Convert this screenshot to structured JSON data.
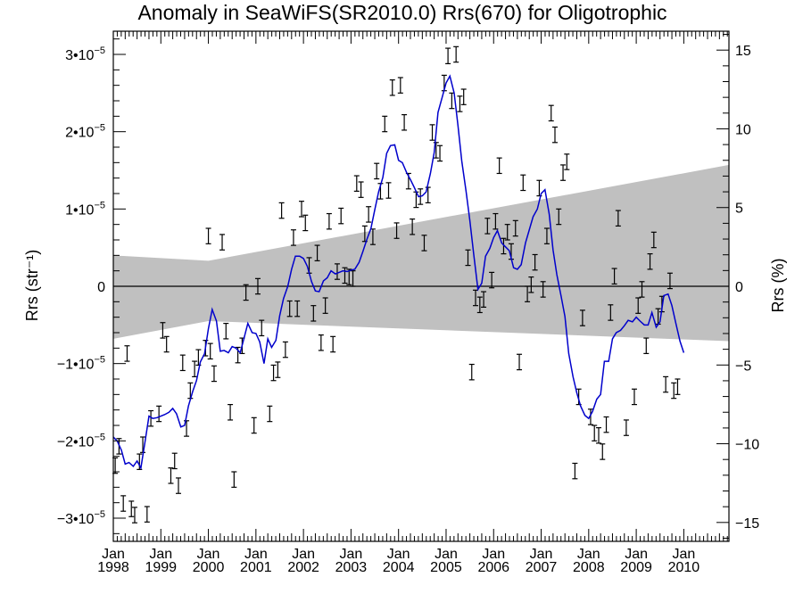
{
  "chart_data": {
    "type": "line",
    "title": "Anomaly in SeaWiFS(SR2010.0) Rrs(670) for Oligotrophic",
    "ylabel_left": "Rrs (str⁻¹)",
    "ylabel_right": "Rrs (%)",
    "xlim": [
      1998.0,
      2010.95
    ],
    "ylim_left": [
      -3.3e-05,
      3.3e-05
    ],
    "ylim_right": [
      -16.2,
      16.2
    ],
    "x_ticks": [
      {
        "month": "Jan",
        "year": "1998",
        "x": 1998
      },
      {
        "month": "Jan",
        "year": "1999",
        "x": 1999
      },
      {
        "month": "Jan",
        "year": "2000",
        "x": 2000
      },
      {
        "month": "Jan",
        "year": "2001",
        "x": 2001
      },
      {
        "month": "Jan",
        "year": "2002",
        "x": 2002
      },
      {
        "month": "Jan",
        "year": "2003",
        "x": 2003
      },
      {
        "month": "Jan",
        "year": "2004",
        "x": 2004
      },
      {
        "month": "Jan",
        "year": "2005",
        "x": 2005
      },
      {
        "month": "Jan",
        "year": "2006",
        "x": 2006
      },
      {
        "month": "Jan",
        "year": "2007",
        "x": 2007
      },
      {
        "month": "Jan",
        "year": "2008",
        "x": 2008
      },
      {
        "month": "Jan",
        "year": "2009",
        "x": 2009
      },
      {
        "month": "Jan",
        "year": "2010",
        "x": 2010
      }
    ],
    "y_ticks_left": [
      {
        "value": 3e-05,
        "mantissa": "3•10",
        "exp": "−5"
      },
      {
        "value": 2e-05,
        "mantissa": "2•10",
        "exp": "−5"
      },
      {
        "value": 1e-05,
        "mantissa": "1•10",
        "exp": "−5"
      },
      {
        "value": 0,
        "mantissa": "0",
        "exp": ""
      },
      {
        "value": -1e-05,
        "mantissa": "−1•10",
        "exp": "−5"
      },
      {
        "value": -2e-05,
        "mantissa": "−2•10",
        "exp": "−5"
      },
      {
        "value": -3e-05,
        "mantissa": "−3•10",
        "exp": "−5"
      }
    ],
    "y_ticks_right": [
      {
        "value": 15,
        "label": "15"
      },
      {
        "value": 10,
        "label": "10"
      },
      {
        "value": 5,
        "label": "5"
      },
      {
        "value": 0,
        "label": "0"
      },
      {
        "value": -5,
        "label": "−5"
      },
      {
        "value": -10,
        "label": "−10"
      },
      {
        "value": -15,
        "label": "−15"
      }
    ],
    "band": {
      "upper": [
        [
          1998.0,
          4e-06
        ],
        [
          2000.0,
          3.3e-06
        ],
        [
          2010.95,
          1.57e-05
        ]
      ],
      "lower": [
        [
          2010.95,
          -7.1e-06
        ],
        [
          2000.0,
          -4.5e-06
        ],
        [
          1998.0,
          -6.8e-06
        ]
      ]
    },
    "zero_line": 0,
    "error_bar_halfwidth": 1e-06,
    "points": [
      [
        1998.04,
        -2.32e-05
      ],
      [
        1998.12,
        -2.07e-05
      ],
      [
        1998.21,
        -2.81e-05
      ],
      [
        1998.29,
        -8.7e-06
      ],
      [
        1998.38,
        -2.88e-05
      ],
      [
        1998.45,
        -2.96e-05
      ],
      [
        1998.55,
        -2.27e-05
      ],
      [
        1998.62,
        -2.05e-05
      ],
      [
        1998.71,
        -2.95e-05
      ],
      [
        1998.79,
        -1.71e-05
      ],
      [
        1998.96,
        -1.65e-05
      ],
      [
        1999.04,
        -5.7e-06
      ],
      [
        1999.12,
        -7.5e-06
      ],
      [
        1999.21,
        -2.45e-05
      ],
      [
        1999.29,
        -2.26e-05
      ],
      [
        1999.37,
        -2.58e-05
      ],
      [
        1999.46,
        -9.9e-06
      ],
      [
        1999.54,
        -1.84e-05
      ],
      [
        1999.62,
        -1.35e-05
      ],
      [
        1999.71,
        -1.07e-05
      ],
      [
        1999.79,
        -9.2e-06
      ],
      [
        1999.94,
        -8e-06
      ],
      [
        2000.0,
        6.5e-06
      ],
      [
        2000.04,
        -8.4e-06
      ],
      [
        2000.12,
        -1.13e-05
      ],
      [
        2000.29,
        5.7e-06
      ],
      [
        2000.37,
        -5.8e-06
      ],
      [
        2000.46,
        -1.63e-05
      ],
      [
        2000.54,
        -2.5e-05
      ],
      [
        2000.62,
        -8.9e-06
      ],
      [
        2000.71,
        -7.7e-06
      ],
      [
        2000.79,
        -8e-07
      ],
      [
        2000.96,
        -1.8e-05
      ],
      [
        2001.04,
        0.0
      ],
      [
        2001.12,
        -5.4e-06
      ],
      [
        2001.29,
        -1.65e-05
      ],
      [
        2001.37,
        -1.12e-05
      ],
      [
        2001.46,
        -1.08e-05
      ],
      [
        2001.54,
        9.8e-06
      ],
      [
        2001.62,
        -8.2e-06
      ],
      [
        2001.71,
        -2.9e-06
      ],
      [
        2001.79,
        6.3e-06
      ],
      [
        2001.87,
        -2.9e-06
      ],
      [
        2001.96,
        1e-05
      ],
      [
        2002.04,
        8.2e-06
      ],
      [
        2002.12,
        2.7e-06
      ],
      [
        2002.21,
        -3.5e-06
      ],
      [
        2002.29,
        4.3e-06
      ],
      [
        2002.37,
        -7.3e-06
      ],
      [
        2002.46,
        -2.5e-06
      ],
      [
        2002.54,
        8.4e-06
      ],
      [
        2002.62,
        -7.5e-06
      ],
      [
        2002.71,
        1.9e-06
      ],
      [
        2002.79,
        9.1e-06
      ],
      [
        2002.87,
        1.4e-06
      ],
      [
        2002.96,
        1.2e-06
      ],
      [
        2003.04,
        1e-06
      ],
      [
        2003.12,
        1.33e-05
      ],
      [
        2003.21,
        1.25e-05
      ],
      [
        2003.29,
        6.8e-06
      ],
      [
        2003.37,
        9.3e-06
      ],
      [
        2003.46,
        6.4e-06
      ],
      [
        2003.54,
        1.49e-05
      ],
      [
        2003.62,
        1.23e-05
      ],
      [
        2003.71,
        2.1e-05
      ],
      [
        2003.79,
        1.24e-05
      ],
      [
        2003.87,
        2.57e-05
      ],
      [
        2003.96,
        7.2e-06
      ],
      [
        2004.04,
        2.6e-05
      ],
      [
        2004.12,
        2.12e-05
      ],
      [
        2004.21,
        1.36e-05
      ],
      [
        2004.29,
        7.7e-06
      ],
      [
        2004.37,
        1.12e-05
      ],
      [
        2004.46,
        1.16e-05
      ],
      [
        2004.54,
        5.6e-06
      ],
      [
        2004.62,
        1.18e-05
      ],
      [
        2004.71,
        1.99e-05
      ],
      [
        2004.79,
        1.76e-05
      ],
      [
        2004.87,
        1.72e-05
      ],
      [
        2004.96,
        2.63e-05
      ],
      [
        2005.04,
        2.98e-05
      ],
      [
        2005.12,
        2.4e-05
      ],
      [
        2005.21,
        3e-05
      ],
      [
        2005.29,
        2.36e-05
      ],
      [
        2005.37,
        2.45e-05
      ],
      [
        2005.46,
        3.7e-06
      ],
      [
        2005.54,
        -1.11e-05
      ],
      [
        2005.62,
        -1.5e-06
      ],
      [
        2005.71,
        -2.4e-06
      ],
      [
        2005.79,
        -1.7e-06
      ],
      [
        2005.87,
        7.8e-06
      ],
      [
        2005.96,
        8e-07
      ],
      [
        2006.04,
        8.4e-06
      ],
      [
        2006.12,
        1.56e-05
      ],
      [
        2006.21,
        5.2e-06
      ],
      [
        2006.29,
        7e-06
      ],
      [
        2006.37,
        4.5e-06
      ],
      [
        2006.46,
        7.5e-06
      ],
      [
        2006.54,
        -9.8e-06
      ],
      [
        2006.62,
        1.34e-05
      ],
      [
        2006.71,
        -1e-06
      ],
      [
        2006.79,
        2e-07
      ],
      [
        2006.87,
        3.1e-06
      ],
      [
        2006.96,
        1.27e-05
      ],
      [
        2007.04,
        -4e-07
      ],
      [
        2007.12,
        6.5e-06
      ],
      [
        2007.21,
        2.24e-05
      ],
      [
        2007.29,
        1.96e-05
      ],
      [
        2007.37,
        9e-06
      ],
      [
        2007.46,
        1.47e-05
      ],
      [
        2007.54,
        1.61e-05
      ],
      [
        2007.71,
        -2.39e-05
      ],
      [
        2007.79,
        -1.43e-05
      ],
      [
        2007.87,
        -4.1e-06
      ],
      [
        2008.04,
        -1.69e-05
      ],
      [
        2008.12,
        -1.9e-05
      ],
      [
        2008.21,
        -1.93e-05
      ],
      [
        2008.29,
        -2.14e-05
      ],
      [
        2008.37,
        -1.79e-05
      ],
      [
        2008.46,
        -3.4e-06
      ],
      [
        2008.54,
        1.3e-06
      ],
      [
        2008.62,
        8.8e-06
      ],
      [
        2008.79,
        -1.83e-05
      ],
      [
        2008.96,
        -1.43e-05
      ],
      [
        2009.04,
        -2.5e-06
      ],
      [
        2009.12,
        -4e-07
      ],
      [
        2009.21,
        -7.7e-06
      ],
      [
        2009.29,
        3.2e-06
      ],
      [
        2009.37,
        6e-06
      ],
      [
        2009.46,
        -3.9e-06
      ],
      [
        2009.54,
        -2.3e-06
      ],
      [
        2009.62,
        -1.27e-05
      ],
      [
        2009.71,
        7e-07
      ],
      [
        2009.79,
        -1.35e-05
      ],
      [
        2009.87,
        -1.3e-05
      ]
    ],
    "fit_line": [
      [
        1998.0,
        -1.95e-05
      ],
      [
        1998.08,
        -2e-05
      ],
      [
        1998.17,
        -2.12e-05
      ],
      [
        1998.25,
        -2.3e-05
      ],
      [
        1998.33,
        -2.28e-05
      ],
      [
        1998.42,
        -2.33e-05
      ],
      [
        1998.5,
        -2.26e-05
      ],
      [
        1998.58,
        -2.35e-05
      ],
      [
        1998.67,
        -2e-05
      ],
      [
        1998.75,
        -1.68e-05
      ],
      [
        1998.83,
        -1.71e-05
      ],
      [
        1998.92,
        -1.7e-05
      ],
      [
        1999.0,
        -1.68e-05
      ],
      [
        1999.08,
        -1.66e-05
      ],
      [
        1999.17,
        -1.63e-05
      ],
      [
        1999.25,
        -1.58e-05
      ],
      [
        1999.33,
        -1.65e-05
      ],
      [
        1999.42,
        -1.82e-05
      ],
      [
        1999.5,
        -1.8e-05
      ],
      [
        1999.58,
        -1.55e-05
      ],
      [
        1999.67,
        -1.36e-05
      ],
      [
        1999.75,
        -1.22e-05
      ],
      [
        1999.83,
        -9.8e-06
      ],
      [
        1999.92,
        -8.7e-06
      ],
      [
        2000.0,
        -5.5e-06
      ],
      [
        2000.08,
        -3e-06
      ],
      [
        2000.17,
        -4.5e-06
      ],
      [
        2000.25,
        -8.4e-06
      ],
      [
        2000.33,
        -8.3e-06
      ],
      [
        2000.42,
        -8.6e-06
      ],
      [
        2000.5,
        -7.8e-06
      ],
      [
        2000.58,
        -8e-06
      ],
      [
        2000.67,
        -8.6e-06
      ],
      [
        2000.75,
        -6.7e-06
      ],
      [
        2000.83,
        -4.8e-06
      ],
      [
        2000.92,
        -6e-06
      ],
      [
        2001.0,
        -6.1e-06
      ],
      [
        2001.08,
        -7.2e-06
      ],
      [
        2001.17,
        -1e-05
      ],
      [
        2001.25,
        -6.8e-06
      ],
      [
        2001.33,
        -7.9e-06
      ],
      [
        2001.42,
        -7e-06
      ],
      [
        2001.5,
        -3.8e-06
      ],
      [
        2001.58,
        -1.6e-06
      ],
      [
        2001.67,
        0.0
      ],
      [
        2001.75,
        2.2e-06
      ],
      [
        2001.83,
        3.9e-06
      ],
      [
        2001.92,
        3.9e-06
      ],
      [
        2002.0,
        3.6e-06
      ],
      [
        2002.08,
        2.6e-06
      ],
      [
        2002.17,
        6e-07
      ],
      [
        2002.25,
        -6e-07
      ],
      [
        2002.33,
        -7e-07
      ],
      [
        2002.42,
        7e-07
      ],
      [
        2002.5,
        1.1e-06
      ],
      [
        2002.58,
        2e-06
      ],
      [
        2002.67,
        1.6e-06
      ],
      [
        2002.75,
        1.8e-06
      ],
      [
        2002.83,
        2e-06
      ],
      [
        2002.92,
        1.9e-06
      ],
      [
        2003.0,
        2.1e-06
      ],
      [
        2003.08,
        2.2e-06
      ],
      [
        2003.17,
        3.1e-06
      ],
      [
        2003.25,
        4.5e-06
      ],
      [
        2003.33,
        6e-06
      ],
      [
        2003.42,
        7.5e-06
      ],
      [
        2003.5,
        9.9e-06
      ],
      [
        2003.58,
        1.22e-05
      ],
      [
        2003.67,
        1.41e-05
      ],
      [
        2003.75,
        1.72e-05
      ],
      [
        2003.83,
        1.82e-05
      ],
      [
        2003.92,
        1.83e-05
      ],
      [
        2004.0,
        1.63e-05
      ],
      [
        2004.08,
        1.6e-05
      ],
      [
        2004.17,
        1.47e-05
      ],
      [
        2004.25,
        1.38e-05
      ],
      [
        2004.33,
        1.28e-05
      ],
      [
        2004.42,
        1.16e-05
      ],
      [
        2004.5,
        1.17e-05
      ],
      [
        2004.58,
        1.22e-05
      ],
      [
        2004.67,
        1.46e-05
      ],
      [
        2004.75,
        1.73e-05
      ],
      [
        2004.83,
        2.25e-05
      ],
      [
        2004.92,
        2.45e-05
      ],
      [
        2005.0,
        2.63e-05
      ],
      [
        2005.08,
        2.72e-05
      ],
      [
        2005.17,
        2.5e-05
      ],
      [
        2005.25,
        2.08e-05
      ],
      [
        2005.33,
        1.62e-05
      ],
      [
        2005.42,
        1.23e-05
      ],
      [
        2005.5,
        8.5e-06
      ],
      [
        2005.58,
        4.2e-06
      ],
      [
        2005.67,
        -4e-07
      ],
      [
        2005.75,
        4e-07
      ],
      [
        2005.83,
        3.9e-06
      ],
      [
        2005.92,
        4.9e-06
      ],
      [
        2006.0,
        6.3e-06
      ],
      [
        2006.08,
        7.2e-06
      ],
      [
        2006.17,
        5.6e-06
      ],
      [
        2006.25,
        5.1e-06
      ],
      [
        2006.33,
        4.6e-06
      ],
      [
        2006.42,
        2.4e-06
      ],
      [
        2006.5,
        2.2e-06
      ],
      [
        2006.58,
        2.8e-06
      ],
      [
        2006.67,
        5.6e-06
      ],
      [
        2006.75,
        7.3e-06
      ],
      [
        2006.83,
        9e-06
      ],
      [
        2006.92,
        1e-05
      ],
      [
        2007.0,
        1.2e-05
      ],
      [
        2007.08,
        1.25e-05
      ],
      [
        2007.17,
        9.3e-06
      ],
      [
        2007.25,
        4.7e-06
      ],
      [
        2007.33,
        1.5e-06
      ],
      [
        2007.42,
        -1.3e-06
      ],
      [
        2007.5,
        -3.9e-06
      ],
      [
        2007.58,
        -8.7e-06
      ],
      [
        2007.67,
        -1.17e-05
      ],
      [
        2007.75,
        -1.38e-05
      ],
      [
        2007.83,
        -1.55e-05
      ],
      [
        2007.92,
        -1.67e-05
      ],
      [
        2008.0,
        -1.71e-05
      ],
      [
        2008.08,
        -1.62e-05
      ],
      [
        2008.17,
        -1.46e-05
      ],
      [
        2008.25,
        -1.4e-05
      ],
      [
        2008.33,
        -9.7e-06
      ],
      [
        2008.42,
        -9.7e-06
      ],
      [
        2008.5,
        -6.8e-06
      ],
      [
        2008.58,
        -6e-06
      ],
      [
        2008.67,
        -5.7e-06
      ],
      [
        2008.75,
        -5.1e-06
      ],
      [
        2008.83,
        -4.4e-06
      ],
      [
        2008.92,
        -4.6e-06
      ],
      [
        2009.0,
        -4e-06
      ],
      [
        2009.08,
        -4.5e-06
      ],
      [
        2009.17,
        -5e-06
      ],
      [
        2009.25,
        -5e-06
      ],
      [
        2009.33,
        -3.4e-06
      ],
      [
        2009.42,
        -5.3e-06
      ],
      [
        2009.5,
        -4.6e-06
      ],
      [
        2009.58,
        -1.2e-06
      ],
      [
        2009.67,
        -1e-06
      ],
      [
        2009.75,
        -2.5e-06
      ],
      [
        2009.83,
        -4.7e-06
      ],
      [
        2009.92,
        -7.1e-06
      ],
      [
        2010.0,
        -8.6e-06
      ]
    ],
    "colors": {
      "fit_line": "#0000cc",
      "band": "#c0c0c0",
      "points": "#000000",
      "axes": "#000000"
    }
  }
}
